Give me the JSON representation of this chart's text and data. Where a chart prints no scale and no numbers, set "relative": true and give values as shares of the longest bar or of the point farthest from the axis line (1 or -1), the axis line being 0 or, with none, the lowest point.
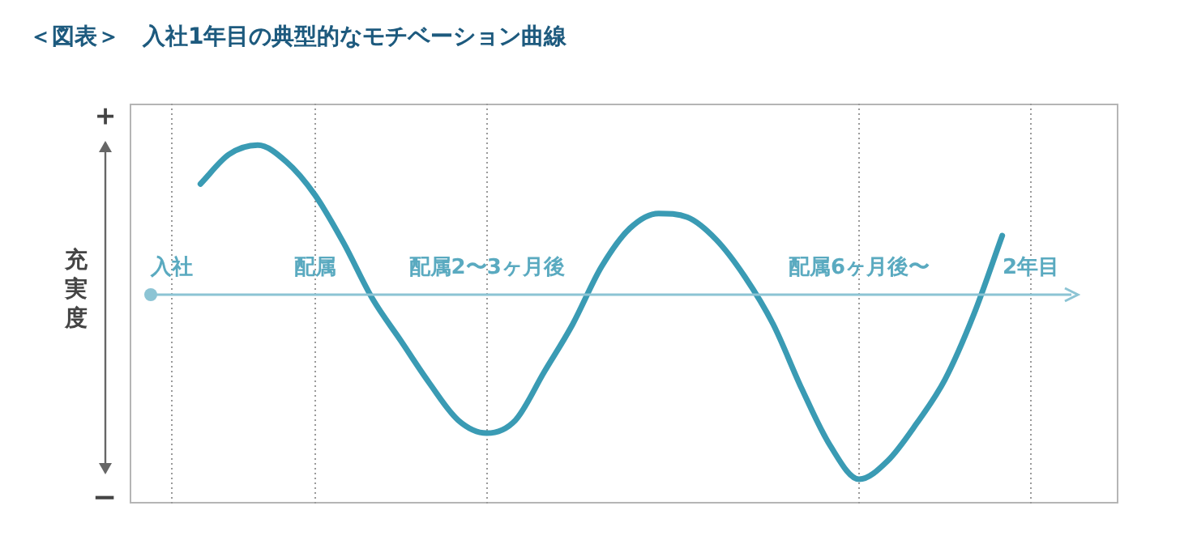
{
  "chart_data": {
    "type": "line",
    "title": "＜図表＞　入社1年目の典型的なモチベーション曲線",
    "ylabel": "充実度",
    "annotations": [
      "＋",
      "−"
    ],
    "relative": true,
    "grid": "x",
    "legend": false,
    "marker": "none",
    "line_style": "solid",
    "categories": [
      "入社",
      null,
      null,
      null,
      null,
      "配属",
      null,
      null,
      null,
      null,
      null,
      "配属2〜3ヶ月後",
      null,
      null,
      null,
      null,
      null,
      null,
      null,
      null,
      null,
      null,
      null,
      null,
      "配属6ヶ月後〜",
      null,
      null,
      null,
      null,
      null,
      "2年目"
    ],
    "series": [
      {
        "color": "#3a9bb4",
        "values": [
          null,
          0.6,
          0.76,
          0.81,
          0.72,
          0.54,
          0.28,
          -0.02,
          -0.25,
          -0.48,
          -0.68,
          -0.75,
          -0.68,
          -0.42,
          -0.16,
          0.15,
          0.36,
          0.44,
          0.42,
          0.3,
          0.1,
          -0.16,
          -0.51,
          -0.82,
          -1,
          -0.9,
          -0.7,
          -0.46,
          -0.11,
          0.32,
          null
        ]
      }
    ]
  }
}
